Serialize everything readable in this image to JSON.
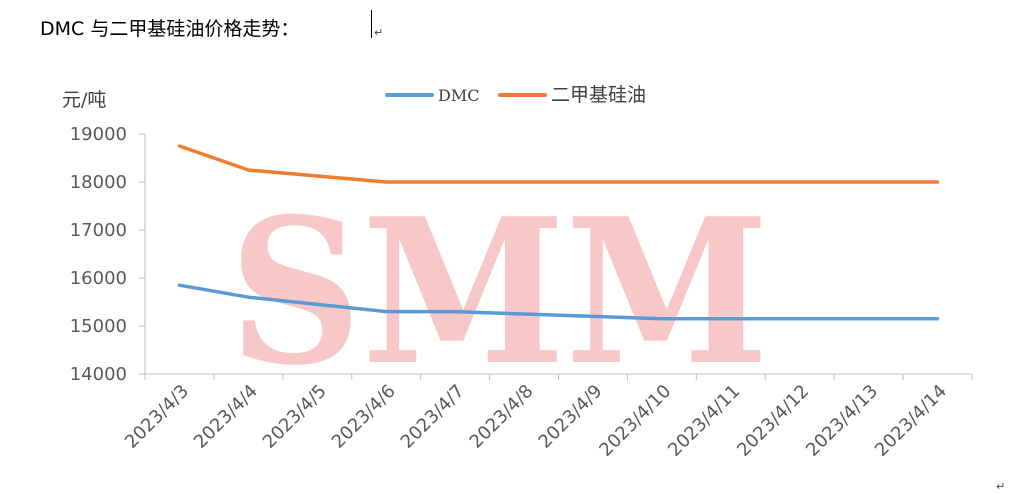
{
  "document": {
    "title": "DMC 与二甲基硅油价格走势："
  },
  "colors": {
    "dmc": "#5b9bd5",
    "silicone_oil": "#ed7d31",
    "watermark": "#f8c8c8",
    "axis": "#bfbfbf",
    "tick_text": "#595959"
  },
  "chart_data": {
    "type": "line",
    "watermark": "SMM",
    "ylabel": "元/吨",
    "xlabel": "",
    "ylim": [
      14000,
      19000
    ],
    "y_ticks": [
      14000,
      15000,
      16000,
      17000,
      18000,
      19000
    ],
    "categories": [
      "2023/4/3",
      "2023/4/4",
      "2023/4/5",
      "2023/4/6",
      "2023/4/7",
      "2023/4/8",
      "2023/4/9",
      "2023/4/10",
      "2023/4/11",
      "2023/4/12",
      "2023/4/13",
      "2023/4/14"
    ],
    "legend": "top-center",
    "grid": false,
    "series": [
      {
        "name": "DMC",
        "color": "#5b9bd5",
        "values": [
          15850,
          15600,
          15450,
          15300,
          15300,
          15250,
          15200,
          15150,
          15150,
          15150,
          15150,
          15150
        ]
      },
      {
        "name": "二甲基硅油",
        "color": "#ed7d31",
        "values": [
          18750,
          18250,
          18125,
          18000,
          18000,
          18000,
          18000,
          18000,
          18000,
          18000,
          18000,
          18000
        ]
      }
    ]
  }
}
